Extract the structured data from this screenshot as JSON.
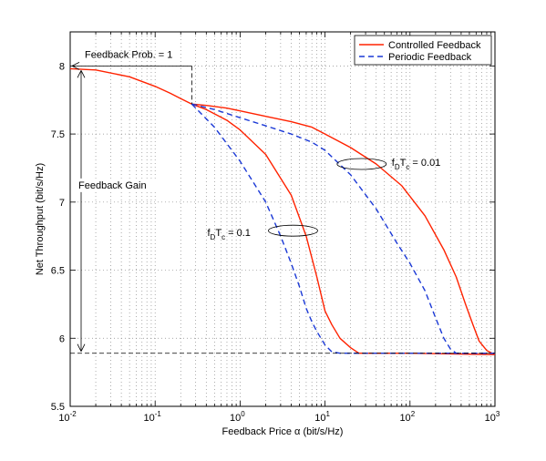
{
  "chart_data": {
    "type": "line",
    "xscale": "log",
    "xlim": [
      0.01,
      1000
    ],
    "ylim": [
      5.5,
      8.25
    ],
    "xlabel": "Feedback Price α (bit/s/Hz)",
    "ylabel": "Net Throughput (bit/s/Hz)",
    "grid": true,
    "legend_position": "top-right",
    "x_ticks": [
      {
        "value": 0.01,
        "base": "10",
        "exp": "-2"
      },
      {
        "value": 0.1,
        "base": "10",
        "exp": "-1"
      },
      {
        "value": 1,
        "base": "10",
        "exp": "0"
      },
      {
        "value": 10,
        "base": "10",
        "exp": "1"
      },
      {
        "value": 100,
        "base": "10",
        "exp": "2"
      },
      {
        "value": 1000,
        "base": "10",
        "exp": "3"
      }
    ],
    "y_ticks": [
      {
        "value": 5.5,
        "label": "5.5"
      },
      {
        "value": 6,
        "label": "6"
      },
      {
        "value": 6.5,
        "label": "6.5"
      },
      {
        "value": 7,
        "label": "7"
      },
      {
        "value": 7.5,
        "label": "7.5"
      },
      {
        "value": 8,
        "label": "8"
      }
    ],
    "series": [
      {
        "name": "Controlled Feedback",
        "color": "#ff2200",
        "style": "solid",
        "group": "fD Tc = 0.1",
        "points": [
          [
            0.01,
            7.98
          ],
          [
            0.02,
            7.97
          ],
          [
            0.05,
            7.92
          ],
          [
            0.1,
            7.85
          ],
          [
            0.15,
            7.8
          ],
          [
            0.2,
            7.76
          ],
          [
            0.27,
            7.72
          ],
          [
            0.4,
            7.68
          ],
          [
            0.7,
            7.6
          ],
          [
            1,
            7.53
          ],
          [
            2,
            7.35
          ],
          [
            4,
            7.05
          ],
          [
            6,
            6.75
          ],
          [
            8,
            6.45
          ],
          [
            10,
            6.2
          ],
          [
            12,
            6.1
          ],
          [
            15,
            6.0
          ],
          [
            20,
            5.93
          ],
          [
            25,
            5.89
          ],
          [
            30,
            5.89
          ],
          [
            100,
            5.89
          ],
          [
            1000,
            5.88
          ]
        ]
      },
      {
        "name": "Controlled Feedback",
        "color": "#ff2200",
        "style": "solid",
        "group": "fD Tc = 0.01",
        "points": [
          [
            0.27,
            7.72
          ],
          [
            0.4,
            7.71
          ],
          [
            0.7,
            7.69
          ],
          [
            1,
            7.67
          ],
          [
            2,
            7.63
          ],
          [
            4,
            7.59
          ],
          [
            7,
            7.55
          ],
          [
            10,
            7.5
          ],
          [
            20,
            7.4
          ],
          [
            40,
            7.28
          ],
          [
            80,
            7.12
          ],
          [
            150,
            6.9
          ],
          [
            250,
            6.65
          ],
          [
            350,
            6.45
          ],
          [
            450,
            6.25
          ],
          [
            550,
            6.1
          ],
          [
            650,
            5.98
          ],
          [
            800,
            5.91
          ],
          [
            1000,
            5.88
          ]
        ]
      },
      {
        "name": "Periodic Feedback",
        "color": "#1a38d6",
        "style": "dashed",
        "group": "fD Tc = 0.1",
        "points": [
          [
            0.27,
            7.72
          ],
          [
            0.5,
            7.55
          ],
          [
            1,
            7.3
          ],
          [
            2,
            7.0
          ],
          [
            3,
            6.75
          ],
          [
            4,
            6.55
          ],
          [
            5,
            6.38
          ],
          [
            6,
            6.22
          ],
          [
            7,
            6.12
          ],
          [
            8,
            6.05
          ],
          [
            10,
            5.95
          ],
          [
            12,
            5.9
          ],
          [
            15,
            5.89
          ],
          [
            1000,
            5.89
          ]
        ]
      },
      {
        "name": "Periodic Feedback",
        "color": "#1a38d6",
        "style": "dashed",
        "group": "fD Tc = 0.01",
        "points": [
          [
            0.27,
            7.72
          ],
          [
            0.5,
            7.68
          ],
          [
            1,
            7.62
          ],
          [
            2,
            7.56
          ],
          [
            4,
            7.5
          ],
          [
            7,
            7.44
          ],
          [
            10,
            7.38
          ],
          [
            20,
            7.2
          ],
          [
            40,
            6.95
          ],
          [
            70,
            6.7
          ],
          [
            100,
            6.55
          ],
          [
            150,
            6.35
          ],
          [
            200,
            6.15
          ],
          [
            250,
            6.0
          ],
          [
            300,
            5.92
          ],
          [
            350,
            5.89
          ],
          [
            1000,
            5.89
          ]
        ]
      }
    ],
    "legend": [
      {
        "label": "Controlled Feedback",
        "color": "#ff2200",
        "style": "solid"
      },
      {
        "label": "Periodic Feedback",
        "color": "#1a38d6",
        "style": "dashed"
      }
    ],
    "annotations": {
      "feedback_prob": "Feedback Prob. = 1",
      "feedback_gain": "Feedback Gain",
      "label_fast": {
        "pre": "f",
        "sub1": "D",
        "mid": "T",
        "sub2": "c",
        "post": " = 0.1"
      },
      "label_slow": {
        "pre": "f",
        "sub1": "D",
        "mid": "T",
        "sub2": "c",
        "post": " = 0.01"
      },
      "prob_one_x": 0.27,
      "prob_one_y": 8.0,
      "gain_top": 7.98,
      "gain_bottom": 5.89,
      "ellipse_fast_center": [
        4.2,
        6.79
      ],
      "ellipse_slow_center": [
        27,
        7.28
      ]
    }
  }
}
